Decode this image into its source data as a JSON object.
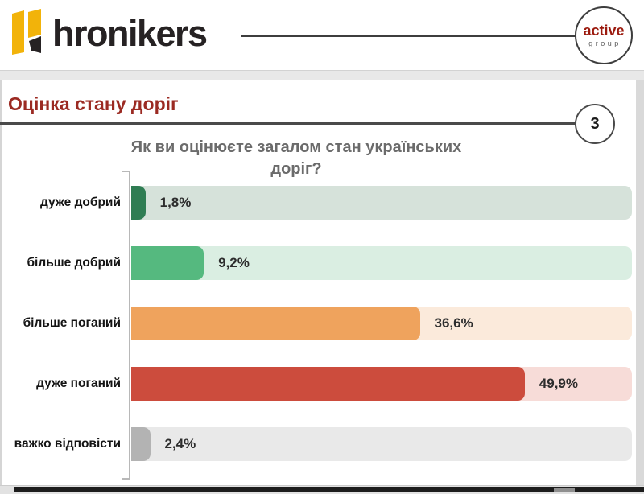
{
  "header": {
    "logo_text": "hronikers",
    "badge": {
      "line1": "active",
      "line2": "group"
    }
  },
  "slide": {
    "title": "Оцінка стану доріг",
    "page_number": "3"
  },
  "chart_data": {
    "type": "bar",
    "orientation": "horizontal",
    "title": "Як ви оцінюєте загалом стан українських доріг?",
    "categories": [
      "дуже добрий",
      "більше добрий",
      "більше поганий",
      "дуже поганий",
      "важко відповісти"
    ],
    "values": [
      1.8,
      9.2,
      36.6,
      49.9,
      2.4
    ],
    "value_labels": [
      "1,8%",
      "9,2%",
      "36,6%",
      "49,9%",
      "2,4%"
    ],
    "xlabel": "",
    "ylabel": "",
    "xlim": [
      0,
      63.5
    ],
    "grid": false,
    "legend": false,
    "bar_colors": [
      "#2F7D53",
      "#55B97F",
      "#EFA35D",
      "#CC4C3D",
      "#B3B3B3"
    ],
    "track_colors": [
      "#D6E2DA",
      "#DAEEE2",
      "#FBEADB",
      "#F7DCD8",
      "#E9E9E9"
    ]
  },
  "colors": {
    "title_red": "#9B2A22",
    "badge_red": "#9B1A0E",
    "logo_yellow": "#F2B30A",
    "logo_dark": "#262223",
    "question_gray": "#6B6B6B"
  }
}
